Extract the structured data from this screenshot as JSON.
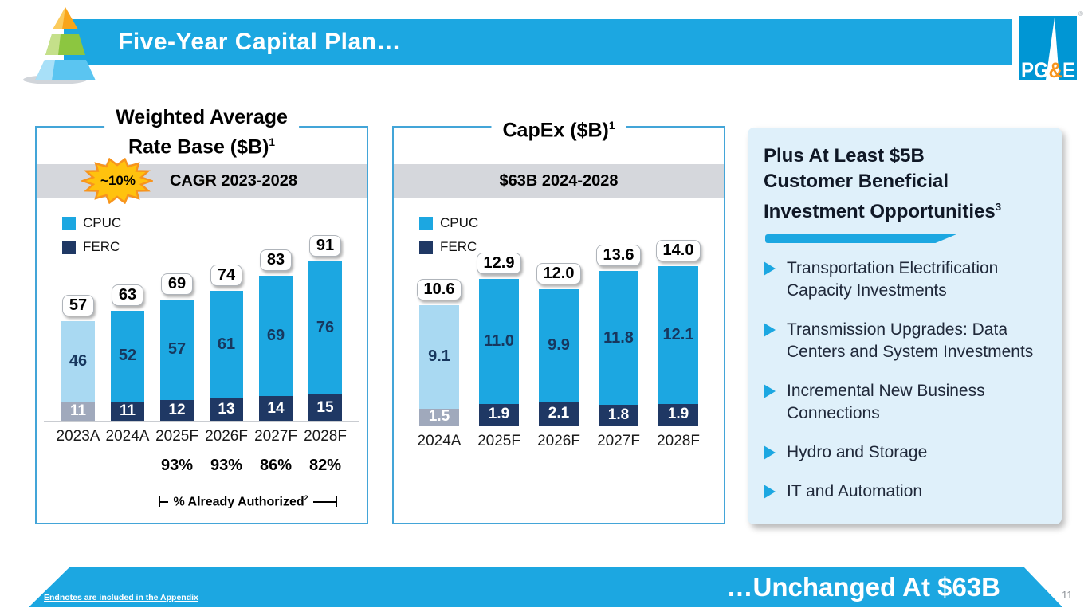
{
  "slide": {
    "title": "Five-Year Capital Plan…",
    "footer_banner": "…Unchanged At $63B",
    "footer_link": "Endnotes are included in the Appendix",
    "page_number": "11",
    "logo": {
      "pg": "PG",
      "amp": "&",
      "e": "E",
      "reg": "®"
    }
  },
  "colors": {
    "brand_blue": "#1CA7E1",
    "cpuc": "#1CA7E1",
    "ferc": "#1F3864",
    "cpuc_actual": "#A9D9F2",
    "ferc_actual": "#A0A9BC",
    "label_navy": "#17375E",
    "banner_gray": "#D5D7DC",
    "panel_bg": "#DFF0FA",
    "burst_fill": "#FFC20E",
    "burst_stroke": "#F7941D"
  },
  "chart_data": [
    {
      "type": "bar",
      "stacked": true,
      "title": "Weighted Average Rate Base ($B)",
      "title_line1": "Weighted Average",
      "title_line2": "Rate Base ($B)",
      "title_sup": "1",
      "banner": {
        "burst": "~10%",
        "text": "CAGR 2023-2028"
      },
      "legend": [
        "CPUC",
        "FERC"
      ],
      "legend_position": "top-left",
      "grid": false,
      "categories": [
        "2023A",
        "2024A",
        "2025F",
        "2026F",
        "2027F",
        "2028F"
      ],
      "series": [
        {
          "name": "CPUC",
          "values": [
            "46",
            "52",
            "57",
            "61",
            "69",
            "76"
          ]
        },
        {
          "name": "FERC",
          "values": [
            "11",
            "11",
            "12",
            "13",
            "14",
            "15"
          ]
        }
      ],
      "totals": [
        "57",
        "63",
        "69",
        "74",
        "83",
        "91"
      ],
      "actual_categories": [
        "2023A"
      ],
      "ylim": [
        0,
        100
      ],
      "pct_row": [
        "",
        "",
        "93%",
        "93%",
        "86%",
        "82%"
      ],
      "pct_caption": {
        "text": "% Already Authorized",
        "sup": "2"
      }
    },
    {
      "type": "bar",
      "stacked": true,
      "title": "CapEx ($B)",
      "title_line2": "CapEx ($B)",
      "title_sup": "1",
      "banner": {
        "text": "$63B 2024-2028"
      },
      "legend": [
        "CPUC",
        "FERC"
      ],
      "legend_position": "top-left",
      "grid": false,
      "categories": [
        "2024A",
        "2025F",
        "2026F",
        "2027F",
        "2028F"
      ],
      "series": [
        {
          "name": "CPUC",
          "values": [
            "9.1",
            "11.0",
            "9.9",
            "11.8",
            "12.1"
          ]
        },
        {
          "name": "FERC",
          "values": [
            "1.5",
            "1.9",
            "2.1",
            "1.8",
            "1.9"
          ]
        }
      ],
      "totals": [
        "10.6",
        "12.9",
        "12.0",
        "13.6",
        "14.0"
      ],
      "actual_categories": [
        "2024A"
      ],
      "ylim": [
        0,
        15
      ]
    }
  ],
  "panel": {
    "title": "Plus At Least $5B Customer Beneficial Investment Opportunities",
    "title_lines": [
      "Plus At Least $5B",
      "Customer Beneficial",
      "Investment Opportunities"
    ],
    "title_sup": "3",
    "bullets": [
      "Transportation Electrification Capacity Investments",
      "Transmission Upgrades: Data Centers and System Investments",
      "Incremental New Business Connections",
      "Hydro and Storage",
      "IT and Automation"
    ]
  }
}
